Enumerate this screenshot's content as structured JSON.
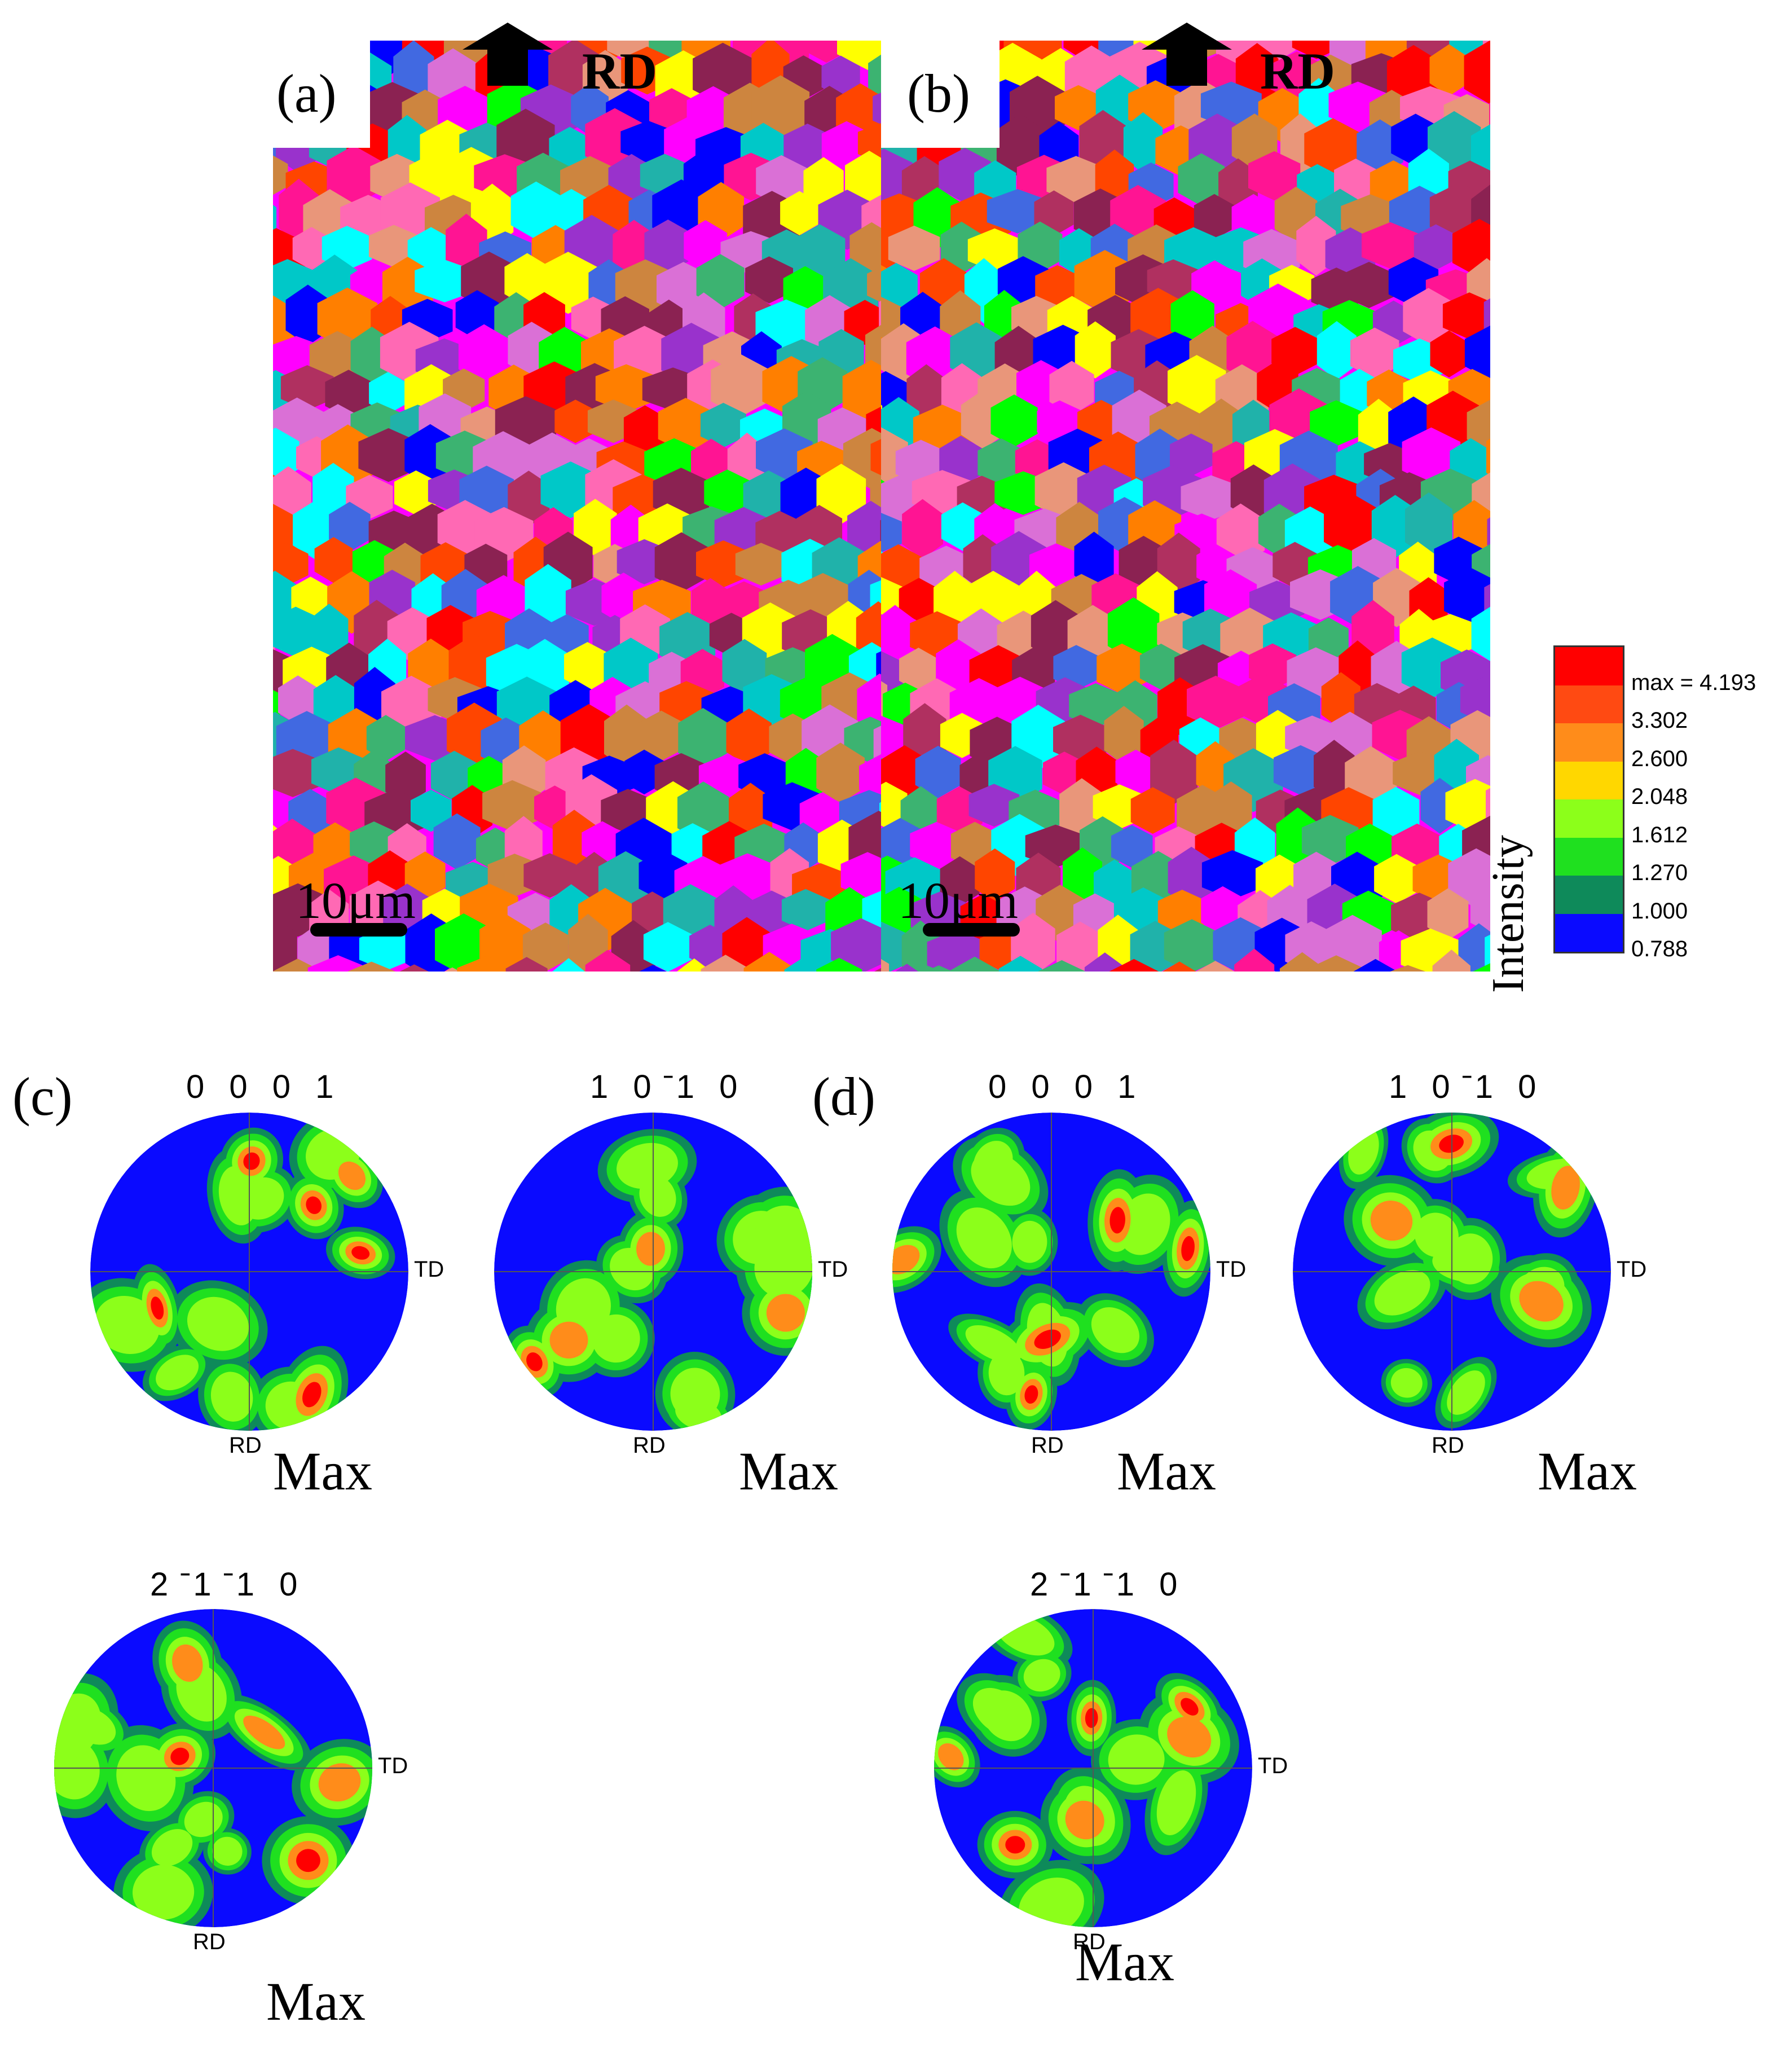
{
  "panels": {
    "a": {
      "label": "(a)",
      "direction": "RD",
      "scale": "10μm"
    },
    "b": {
      "label": "(b)",
      "direction": "RD",
      "scale": "10μm"
    },
    "c": {
      "label": "(c)"
    },
    "d": {
      "label": "(d)"
    }
  },
  "legend": {
    "title": "Intensity",
    "levels": [
      "max = 4.193",
      "3.302",
      "2.600",
      "2.048",
      "1.612",
      "1.270",
      "1.000",
      "0.788"
    ],
    "colors": [
      "#ff0000",
      "#ff4a12",
      "#ff8c1a",
      "#ffd700",
      "#8cff1a",
      "#1fe01f",
      "#0e8a5a",
      "#0a0aff"
    ]
  },
  "pole_figures": {
    "c": [
      {
        "title": "0001",
        "title_display": "0 0 0 1",
        "rd": "RD",
        "td": "TD",
        "max": "Max"
      },
      {
        "title": "10-10",
        "title_display": "1 0 ̄1 0",
        "rd": "RD",
        "td": "TD",
        "max": "Max"
      },
      {
        "title": "2-1-10",
        "title_display": "2 ̄1 ̄1 0",
        "rd": "RD",
        "td": "TD",
        "max": "Max"
      }
    ],
    "d": [
      {
        "title": "0001",
        "title_display": "0 0 0 1",
        "rd": "RD",
        "td": "TD",
        "max": "Max"
      },
      {
        "title": "10-10",
        "title_display": "1 0 ̄1 0",
        "rd": "RD",
        "td": "TD",
        "max": "Max"
      },
      {
        "title": "2-1-10",
        "title_display": "2 ̄1 ̄1 0",
        "rd": "RD",
        "td": "TD",
        "max": "Max"
      }
    ]
  },
  "grain_palette": [
    "#ff00ff",
    "#ff1493",
    "#ff0000",
    "#ff7f00",
    "#ffff00",
    "#00ff00",
    "#00ffff",
    "#0000ff",
    "#20b2aa",
    "#b03060",
    "#cd853f",
    "#9932cc",
    "#ff4500",
    "#3cb371",
    "#ff69b4",
    "#8b2252",
    "#da70d6",
    "#e9967a",
    "#00c8c8",
    "#4169e1"
  ]
}
